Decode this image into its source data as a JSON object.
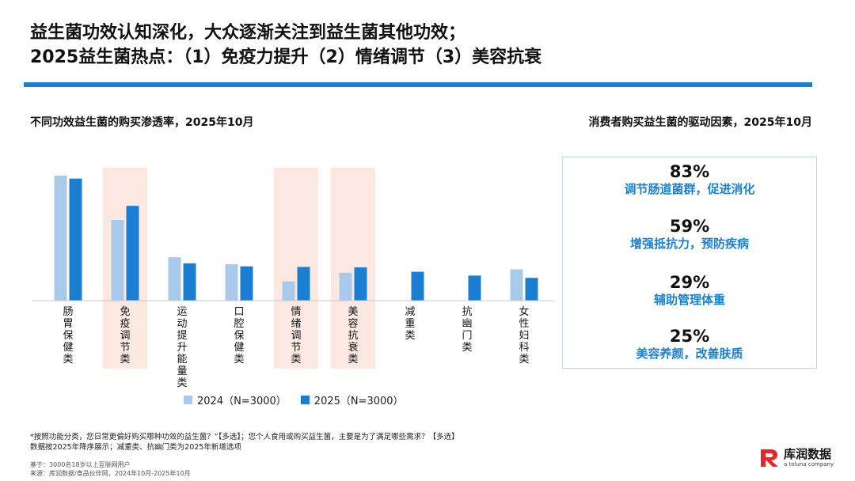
{
  "header": {
    "title_line1": "益生菌功效认知深化，大众逐渐关注到益生菌其他功效；",
    "title_line2": "2025益生菌热点：（1）免疫力提升（2）情绪调节（3）美容抗衰"
  },
  "left_panel": {
    "title": "不同功效益生菌的购买渗透率，2025年10月"
  },
  "right_panel": {
    "title": "消费者购买益生菌的驱动因素，2025年10月",
    "drivers": [
      {
        "pct": "83%",
        "label": "调节肠道菌群，促进消化"
      },
      {
        "pct": "59%",
        "label": "增强抵抗力，预防疾病"
      },
      {
        "pct": "29%",
        "label": "辅助管理体重"
      },
      {
        "pct": "25%",
        "label": "美容养颜，改善肤质"
      }
    ]
  },
  "chart_data": {
    "type": "bar",
    "categories": [
      "肠胃保健类",
      "免疫调节类",
      "运动提升能量类",
      "口腔保健类",
      "情绪调节类",
      "美容抗衰类",
      "减重类",
      "抗幽门类",
      "女性妇科类"
    ],
    "highlighted": [
      "免疫调节类",
      "情绪调节类",
      "美容抗衰类"
    ],
    "series": [
      {
        "name": "2024（N=3000）",
        "color": "#a9c9ea",
        "values": [
          62,
          40,
          21.5,
          18,
          9.5,
          13.8,
          null,
          null,
          15.5
        ]
      },
      {
        "name": "2025（N=3000）",
        "color": "#1a7fd3",
        "values": [
          60.5,
          47,
          18.5,
          17,
          16.7,
          16.5,
          14.3,
          12.4,
          11.3
        ]
      }
    ],
    "highlight_color": "#fbe9e1"
  },
  "notes": {
    "line1": "*按照功能分类，您日常更偏好购买哪种功效的益生菌？”【多选】；您个人食用或购买益生菌，主要是为了满足哪些需求？【多选】",
    "line2": "数据按2025年降序展示；减重类、抗幽门类为2025年新增选项"
  },
  "source": {
    "base": "基于：3000名18岁以上互联网用户",
    "source": "来源：库润数据/食品伙伴网，2024年10月-2025年10月"
  },
  "logo": {
    "name": "库润数据",
    "sub": "a toluna company",
    "mark": "R"
  }
}
